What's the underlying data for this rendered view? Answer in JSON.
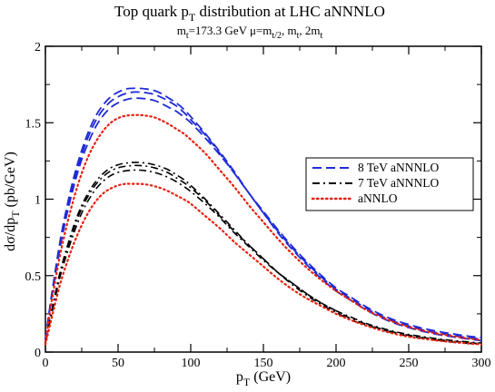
{
  "chart_data": {
    "type": "line",
    "title": {
      "main": "Top quark p",
      "sub": "T",
      "tail": " distribution at LHC    aNNNLO"
    },
    "subtitle": {
      "m": "m",
      "m_sub": "t",
      "mass": "=173.3 GeV      ",
      "mu": "μ=m",
      "mu_sub": "t/2",
      "sep1": ", m",
      "mt_sub": "t",
      "sep2": ", 2m",
      "m2_sub": "t"
    },
    "xlabel": {
      "main": "p",
      "sub": "T",
      "unit": " (GeV)"
    },
    "ylabel": {
      "main": "dσ/dp",
      "sub": "T",
      "unit": " (pb/GeV)"
    },
    "xlim": [
      0,
      300
    ],
    "ylim": [
      0,
      2
    ],
    "x_ticks": [
      "0",
      "50",
      "100",
      "150",
      "200",
      "250",
      "300"
    ],
    "y_ticks": [
      "0",
      "0.5",
      "1",
      "1.5",
      "2"
    ],
    "grid": false,
    "legend_position": "right",
    "legend": [
      {
        "label": "8 TeV  aNNNLO",
        "color": "#1f2bd6",
        "dash": "dashed"
      },
      {
        "label": "7 TeV  aNNNLO",
        "color": "#000000",
        "dash": "dashdot"
      },
      {
        "label": "aNNLO",
        "color": "#e8200f",
        "dash": "dotted"
      }
    ],
    "x": [
      0,
      2,
      5,
      10,
      15,
      20,
      25,
      30,
      35,
      40,
      45,
      50,
      55,
      60,
      65,
      70,
      75,
      80,
      85,
      90,
      95,
      100,
      110,
      120,
      130,
      140,
      150,
      160,
      170,
      180,
      190,
      200,
      210,
      220,
      230,
      240,
      250,
      260,
      270,
      280,
      290,
      300
    ],
    "series": [
      {
        "style": "dashed",
        "color": "#1f2bd6",
        "values": [
          0.08,
          0.22,
          0.42,
          0.72,
          0.96,
          1.16,
          1.32,
          1.45,
          1.55,
          1.62,
          1.67,
          1.7,
          1.72,
          1.725,
          1.725,
          1.72,
          1.71,
          1.69,
          1.66,
          1.63,
          1.59,
          1.54,
          1.43,
          1.31,
          1.18,
          1.04,
          0.91,
          0.78,
          0.67,
          0.57,
          0.48,
          0.4,
          0.34,
          0.28,
          0.23,
          0.19,
          0.16,
          0.135,
          0.115,
          0.1,
          0.087,
          0.075
        ]
      },
      {
        "style": "dashed",
        "color": "#1f2bd6",
        "values": [
          0.08,
          0.22,
          0.41,
          0.7,
          0.94,
          1.13,
          1.29,
          1.42,
          1.52,
          1.59,
          1.64,
          1.67,
          1.69,
          1.7,
          1.7,
          1.695,
          1.685,
          1.665,
          1.64,
          1.61,
          1.57,
          1.52,
          1.42,
          1.3,
          1.17,
          1.04,
          0.91,
          0.79,
          0.68,
          0.58,
          0.49,
          0.41,
          0.35,
          0.29,
          0.24,
          0.2,
          0.17,
          0.145,
          0.125,
          0.11,
          0.095,
          0.085
        ]
      },
      {
        "style": "dashed",
        "color": "#1f2bd6",
        "values": [
          0.08,
          0.21,
          0.4,
          0.68,
          0.91,
          1.1,
          1.26,
          1.38,
          1.48,
          1.55,
          1.6,
          1.63,
          1.65,
          1.66,
          1.66,
          1.655,
          1.645,
          1.625,
          1.6,
          1.575,
          1.54,
          1.5,
          1.4,
          1.29,
          1.17,
          1.04,
          0.92,
          0.8,
          0.69,
          0.59,
          0.5,
          0.42,
          0.36,
          0.3,
          0.25,
          0.21,
          0.18,
          0.155,
          0.135,
          0.12,
          0.105,
          0.095
        ]
      },
      {
        "style": "dashdot",
        "color": "#000000",
        "values": [
          0.06,
          0.16,
          0.3,
          0.52,
          0.69,
          0.84,
          0.96,
          1.05,
          1.12,
          1.17,
          1.205,
          1.225,
          1.235,
          1.24,
          1.24,
          1.235,
          1.225,
          1.21,
          1.19,
          1.16,
          1.13,
          1.09,
          1.0,
          0.9,
          0.8,
          0.7,
          0.61,
          0.52,
          0.44,
          0.37,
          0.31,
          0.26,
          0.21,
          0.18,
          0.15,
          0.125,
          0.105,
          0.09,
          0.077,
          0.066,
          0.058,
          0.05
        ]
      },
      {
        "style": "dashdot",
        "color": "#000000",
        "values": [
          0.06,
          0.15,
          0.29,
          0.5,
          0.67,
          0.82,
          0.94,
          1.03,
          1.1,
          1.15,
          1.185,
          1.205,
          1.215,
          1.22,
          1.22,
          1.215,
          1.205,
          1.19,
          1.17,
          1.14,
          1.11,
          1.075,
          0.99,
          0.89,
          0.79,
          0.7,
          0.61,
          0.52,
          0.45,
          0.38,
          0.32,
          0.27,
          0.22,
          0.185,
          0.155,
          0.13,
          0.11,
          0.095,
          0.082,
          0.071,
          0.062,
          0.054
        ]
      },
      {
        "style": "dashdot",
        "color": "#000000",
        "values": [
          0.06,
          0.15,
          0.28,
          0.49,
          0.65,
          0.79,
          0.91,
          1.0,
          1.07,
          1.12,
          1.155,
          1.175,
          1.185,
          1.19,
          1.19,
          1.185,
          1.175,
          1.16,
          1.14,
          1.115,
          1.085,
          1.05,
          0.97,
          0.88,
          0.78,
          0.69,
          0.6,
          0.52,
          0.45,
          0.38,
          0.32,
          0.27,
          0.23,
          0.19,
          0.16,
          0.135,
          0.115,
          0.1,
          0.087,
          0.076,
          0.067,
          0.059
        ]
      },
      {
        "style": "dotted",
        "color": "#e8200f",
        "values": [
          0.07,
          0.19,
          0.37,
          0.63,
          0.84,
          1.02,
          1.17,
          1.29,
          1.38,
          1.45,
          1.5,
          1.53,
          1.545,
          1.55,
          1.55,
          1.545,
          1.535,
          1.515,
          1.49,
          1.46,
          1.43,
          1.39,
          1.3,
          1.19,
          1.08,
          0.96,
          0.85,
          0.74,
          0.64,
          0.55,
          0.47,
          0.4,
          0.34,
          0.28,
          0.235,
          0.195,
          0.165,
          0.14,
          0.12,
          0.105,
          0.09,
          0.08
        ]
      },
      {
        "style": "dotted",
        "color": "#e8200f",
        "values": [
          0.05,
          0.13,
          0.25,
          0.44,
          0.59,
          0.72,
          0.83,
          0.92,
          0.99,
          1.04,
          1.07,
          1.09,
          1.1,
          1.1,
          1.1,
          1.095,
          1.085,
          1.07,
          1.05,
          1.025,
          1.0,
          0.97,
          0.89,
          0.81,
          0.72,
          0.64,
          0.56,
          0.48,
          0.41,
          0.35,
          0.3,
          0.25,
          0.21,
          0.175,
          0.145,
          0.12,
          0.1,
          0.087,
          0.075,
          0.065,
          0.057,
          0.05
        ]
      }
    ]
  }
}
